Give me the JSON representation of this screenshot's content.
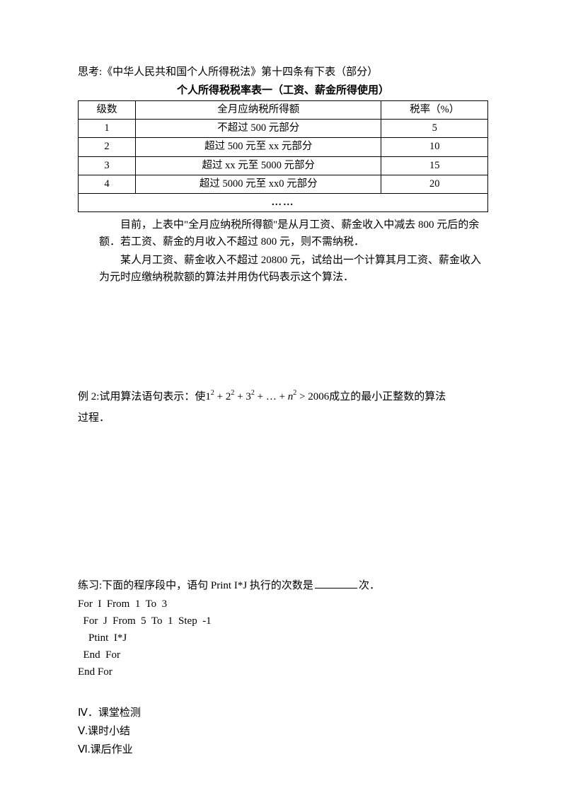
{
  "intro_line": "思考:《中华人民共和国个人所得税法》第十四条有下表（部分）",
  "table_title": "个人所得税税率表一（工资、薪金所得使用）",
  "table": {
    "headers": [
      "级数",
      "全月应纳税所得额",
      "税率（%）"
    ],
    "rows": [
      [
        "1",
        "不超过 500 元部分",
        "5"
      ],
      [
        "2",
        "超过 500 元至 xx 元部分",
        "10"
      ],
      [
        "3",
        "超过 xx 元至 5000 元部分",
        "15"
      ],
      [
        "4",
        "超过 5000 元至 xx0 元部分",
        "20"
      ]
    ],
    "ellipsis": "……"
  },
  "body_text": {
    "p1": "目前，上表中\"全月应纳税所得额\"是从月工资、薪金收入中减去 800 元后的余额．若工资、薪金的月收入不超过 800 元，则不需纳税．",
    "p2": "某人月工资、薪金收入不超过 20800 元，试给出一个计算其月工资、薪金收入为元时应缴纳税款额的算法并用伪代码表示这个算法．"
  },
  "example2": {
    "prefix": "例 2:试用算法语句表示：使",
    "formula_terms": [
      {
        "base": "1",
        "exp": "2"
      },
      {
        "base": "2",
        "exp": "2"
      },
      {
        "base": "3",
        "exp": "2"
      }
    ],
    "plus": " + ",
    "dots": "…",
    "n_term": {
      "base": "n",
      "exp": "2"
    },
    "gt": " > ",
    "rhs": "2006",
    "suffix1": "成立的最小正整数的算法",
    "suffix2": "过程．"
  },
  "exercise": {
    "line": "练习:下面的程序段中，语句 Print  I*J 执行的次数是",
    "suffix": "次．",
    "code": [
      "For  I  From  1  To  3",
      "  For  J  From  5  To  1  Step  -1",
      "    Ptint  I*J",
      "  End  For",
      "End For"
    ]
  },
  "sections": {
    "s4": "Ⅳ．课堂检测",
    "s5": "Ⅴ.课时小结",
    "s6": "Ⅵ.课后作业"
  }
}
